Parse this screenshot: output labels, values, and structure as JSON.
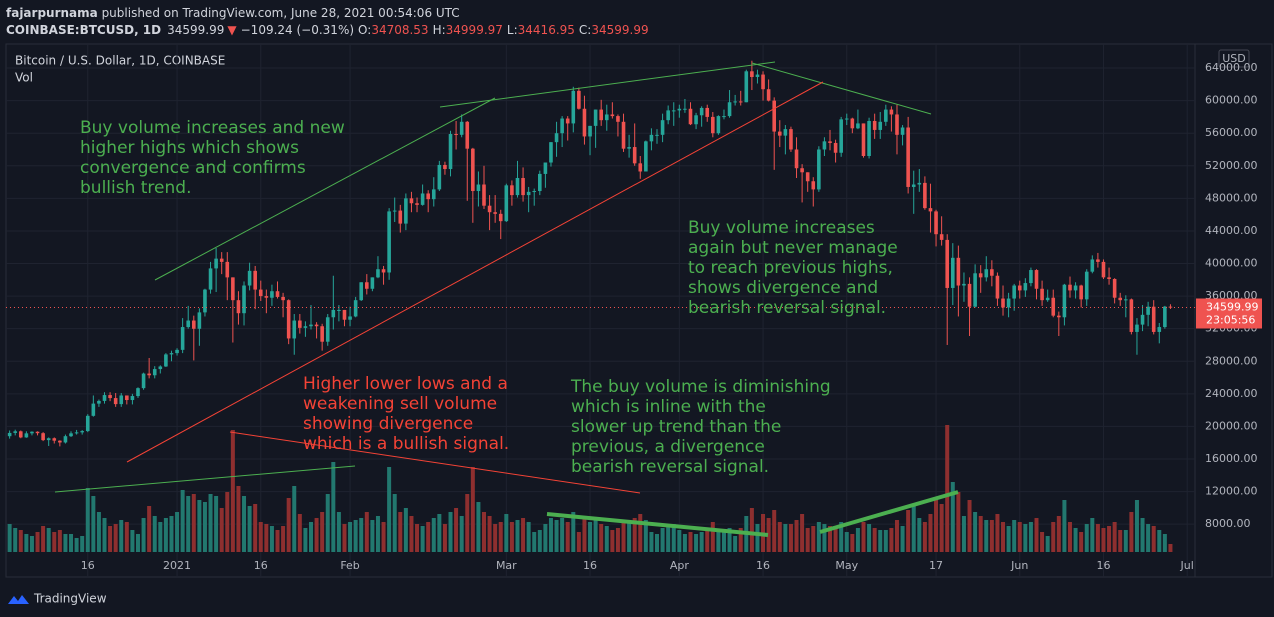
{
  "header": {
    "author": "fajarpurnama",
    "published": " published on TradingView.com, June 28, 2021 00:54:06 UTC"
  },
  "chart_data": {
    "type": "candlestick",
    "symbol": "COINBASE:BTCUSD, 1D",
    "arrow": "▼",
    "change": "−109.24 (−0.31%)",
    "ohlc_labels": [
      "O:",
      "H:",
      "L:",
      "C:"
    ],
    "title": "Bitcoin / U.S. Dollar, 1D, COINBASE",
    "volume_label": "Vol",
    "currency": "USD",
    "countdown": "23:05:56",
    "open": [
      18800,
      19200,
      19400,
      18650,
      19150,
      19350,
      19170,
      18320,
      18550,
      18250,
      18030,
      18800,
      19150,
      19270,
      19430,
      21300,
      22800,
      23130,
      23850,
      23480,
      22740,
      23800,
      23240,
      23730,
      24700,
      26490,
      26280,
      27040,
      27360,
      28840,
      29000,
      29400,
      32200,
      33000,
      31990,
      34000,
      36800,
      39400,
      40600,
      40200,
      38300,
      35500,
      33900,
      37300,
      39100,
      36800,
      36000,
      35800,
      36600,
      35900,
      35500,
      30800,
      33000,
      32100,
      32300,
      32500,
      32300,
      30400,
      33400,
      34300,
      34300,
      33100,
      33500,
      35500,
      37700,
      36900,
      38300,
      39300,
      38900,
      46400,
      46500,
      44900,
      48000,
      47400,
      47200,
      48600,
      47900,
      49100,
      52100,
      51600,
      55900,
      55800,
      57400,
      54100,
      48900,
      49700,
      47100,
      46300,
      46100,
      45200,
      49600,
      48400,
      50500,
      48400,
      48800,
      48900,
      51000,
      52400,
      54900,
      56000,
      57800,
      57200,
      61200,
      59000,
      55600,
      56900,
      58900,
      57600,
      58300,
      58100,
      57400,
      54100,
      54300,
      52300,
      51300,
      55000,
      55800,
      55800,
      57600,
      58800,
      58800,
      59000,
      59000,
      57100,
      58200,
      59100,
      58000,
      56000,
      58100,
      58100,
      59800,
      59900,
      59800,
      63600,
      62900,
      63200,
      61400,
      60000,
      56200,
      55700,
      56500,
      54000,
      51700,
      51200,
      50100,
      49100,
      54000,
      55000,
      54800,
      53600,
      57700,
      57800,
      56600,
      57200,
      53200,
      57500,
      56400,
      57400,
      58900,
      58300,
      55800,
      56700,
      49400,
      49700,
      49900,
      46800,
      46400,
      43600,
      42900,
      37000,
      40700,
      37300,
      37500,
      34700,
      38800,
      38300,
      39300,
      38500,
      35700,
      34600,
      35700,
      37300,
      36700,
      37600,
      39200,
      36900,
      35500,
      35800,
      33600,
      33400,
      37400,
      36700,
      37300,
      35600,
      39000,
      40500,
      40200,
      38300,
      38100,
      35800,
      35500,
      35600,
      31600,
      32500,
      33700,
      34700,
      31600,
      32200,
      34708.53
    ],
    "high": [
      19500,
      19600,
      19500,
      19400,
      19400,
      19400,
      19300,
      18650,
      18650,
      18300,
      19000,
      19400,
      19570,
      19550,
      21500,
      23800,
      23300,
      24200,
      24200,
      24100,
      24100,
      23800,
      24000,
      24800,
      26600,
      28400,
      27400,
      27500,
      29000,
      29300,
      29600,
      33300,
      34800,
      33600,
      34500,
      36900,
      40200,
      41900,
      41400,
      41400,
      38300,
      36600,
      37800,
      40100,
      39700,
      37900,
      36800,
      37400,
      37800,
      36400,
      35600,
      33800,
      33800,
      32900,
      34900,
      32800,
      32600,
      33800,
      38500,
      34900,
      34300,
      34700,
      35900,
      37700,
      38700,
      38300,
      40900,
      39700,
      46800,
      48100,
      47200,
      48600,
      48800,
      48100,
      49700,
      49000,
      50600,
      52600,
      52500,
      56300,
      57500,
      58300,
      57500,
      54200,
      51300,
      52000,
      48400,
      48400,
      46600,
      49800,
      50200,
      52600,
      51800,
      49400,
      49200,
      51400,
      52400,
      54900,
      57400,
      58100,
      58100,
      61700,
      61600,
      60600,
      56900,
      58900,
      60100,
      59500,
      59800,
      58300,
      58400,
      55800,
      57200,
      53200,
      55100,
      56600,
      56500,
      58400,
      59400,
      59800,
      59500,
      60200,
      59800,
      58500,
      59300,
      59500,
      58600,
      58200,
      58900,
      61300,
      60700,
      61200,
      63800,
      64900,
      63800,
      63600,
      62600,
      60400,
      57600,
      57000,
      56800,
      55500,
      52200,
      51200,
      50600,
      54400,
      55500,
      56400,
      55200,
      58000,
      58400,
      57900,
      58900,
      57200,
      57900,
      58400,
      58600,
      59500,
      59300,
      59500,
      57000,
      58000,
      51400,
      51600,
      50700,
      49800,
      46600,
      45800,
      43600,
      42500,
      42200,
      38900,
      38300,
      39900,
      39800,
      40900,
      40400,
      38900,
      37300,
      36400,
      37500,
      37900,
      38200,
      39500,
      39300,
      37900,
      36800,
      36800,
      34100,
      37500,
      38400,
      37700,
      37400,
      39300,
      41000,
      41300,
      40500,
      39500,
      38200,
      36400,
      36100,
      35700,
      33300,
      34900,
      35300,
      35500,
      32700,
      34800,
      34999.97
    ],
    "low": [
      18500,
      18900,
      18550,
      18600,
      18900,
      18900,
      18200,
      17600,
      17900,
      17550,
      17900,
      18700,
      19000,
      19000,
      19300,
      21200,
      22400,
      22800,
      23100,
      22400,
      22400,
      22700,
      22700,
      23500,
      24500,
      25900,
      25900,
      26500,
      27300,
      28000,
      28700,
      29000,
      32000,
      28100,
      29900,
      33500,
      36300,
      36500,
      38700,
      35500,
      30300,
      32500,
      32400,
      36700,
      34400,
      35400,
      33900,
      34800,
      35700,
      33400,
      30100,
      28800,
      31400,
      31000,
      31900,
      30800,
      29300,
      29900,
      31900,
      32900,
      32300,
      32300,
      33400,
      35400,
      36200,
      36600,
      38200,
      37400,
      38000,
      45100,
      43800,
      44100,
      46300,
      46300,
      47100,
      46300,
      47000,
      48900,
      50900,
      50700,
      54000,
      55500,
      47700,
      45000,
      47000,
      46700,
      44100,
      45000,
      43000,
      45100,
      47100,
      48100,
      47600,
      46300,
      47100,
      48400,
      49300,
      51900,
      53100,
      54300,
      55100,
      56100,
      58900,
      54600,
      53300,
      54200,
      56900,
      56300,
      57800,
      55600,
      53700,
      53000,
      52000,
      50400,
      51300,
      53900,
      54700,
      54900,
      57100,
      56900,
      57900,
      58500,
      57000,
      56500,
      56800,
      57400,
      55500,
      55800,
      57700,
      57900,
      59400,
      59400,
      59800,
      61300,
      62100,
      60000,
      59900,
      51500,
      54300,
      53400,
      53700,
      50500,
      47500,
      48800,
      47000,
      48800,
      53200,
      53900,
      52400,
      53100,
      57000,
      56000,
      56500,
      53000,
      52900,
      55300,
      55300,
      56900,
      56200,
      53400,
      54500,
      48600,
      46100,
      48800,
      46600,
      43800,
      42100,
      42200,
      30000,
      34900,
      33500,
      35300,
      31100,
      34600,
      36400,
      37800,
      37200,
      34800,
      33600,
      33400,
      34200,
      35700,
      35900,
      37200,
      35600,
      34800,
      35300,
      33400,
      31100,
      32400,
      35800,
      35700,
      34600,
      34800,
      38800,
      39500,
      38100,
      37400,
      35100,
      34800,
      33400,
      31300,
      28800,
      31700,
      32300,
      31300,
      30200,
      32000,
      34416.95
    ],
    "close": [
      19200,
      19400,
      18650,
      19150,
      19350,
      19170,
      18320,
      18550,
      18250,
      18030,
      18800,
      19150,
      19270,
      19430,
      21300,
      22800,
      23130,
      23850,
      23480,
      22740,
      23800,
      23240,
      23730,
      24700,
      26490,
      26280,
      27040,
      27360,
      28840,
      29000,
      29400,
      32200,
      33000,
      31990,
      34000,
      36800,
      39400,
      40600,
      40200,
      38300,
      35500,
      33900,
      37300,
      39100,
      36800,
      36000,
      35800,
      36600,
      35900,
      35500,
      30800,
      33000,
      32100,
      32300,
      32500,
      32300,
      30400,
      33400,
      34300,
      34300,
      33100,
      33500,
      35500,
      37700,
      36900,
      38300,
      39300,
      38900,
      46400,
      46500,
      44900,
      48000,
      47400,
      47200,
      48600,
      47900,
      49100,
      52100,
      51600,
      55900,
      55800,
      57400,
      54100,
      48900,
      49700,
      47100,
      46300,
      46100,
      45200,
      49600,
      48400,
      50500,
      48400,
      48800,
      48900,
      51000,
      52400,
      54900,
      56000,
      57800,
      57200,
      61200,
      59000,
      55600,
      56900,
      58900,
      57600,
      58300,
      58100,
      57400,
      54100,
      54300,
      52300,
      51300,
      55000,
      55800,
      55800,
      57600,
      58800,
      58800,
      59000,
      59000,
      57100,
      58200,
      59100,
      58000,
      56000,
      58100,
      58100,
      59800,
      59900,
      59800,
      63600,
      62900,
      63200,
      61400,
      60000,
      56200,
      55700,
      56500,
      54000,
      51700,
      51200,
      50100,
      49100,
      54000,
      55000,
      54800,
      53600,
      57700,
      57800,
      56600,
      57200,
      53200,
      57500,
      56400,
      57400,
      58900,
      58300,
      55800,
      56700,
      49400,
      49700,
      49900,
      46800,
      46400,
      43600,
      42900,
      37000,
      40700,
      37300,
      37500,
      34700,
      38800,
      38300,
      39300,
      38500,
      35700,
      34600,
      35700,
      37300,
      36700,
      37600,
      39200,
      36900,
      35500,
      35800,
      33600,
      33400,
      37400,
      36700,
      37300,
      35600,
      39000,
      40500,
      40200,
      38300,
      38100,
      35800,
      35500,
      35600,
      31600,
      32500,
      33700,
      34700,
      31600,
      32200,
      34709.23,
      34599.99
    ],
    "volume": [
      28,
      24,
      22,
      18,
      16,
      20,
      26,
      24,
      20,
      22,
      18,
      18,
      14,
      16,
      64,
      56,
      40,
      34,
      26,
      28,
      32,
      30,
      22,
      18,
      34,
      46,
      36,
      30,
      34,
      36,
      40,
      62,
      56,
      58,
      52,
      50,
      58,
      56,
      44,
      60,
      122,
      66,
      56,
      46,
      48,
      30,
      28,
      26,
      22,
      26,
      54,
      66,
      38,
      24,
      30,
      34,
      40,
      58,
      90,
      40,
      28,
      30,
      32,
      34,
      40,
      32,
      36,
      30,
      85,
      58,
      40,
      44,
      36,
      28,
      26,
      30,
      34,
      38,
      28,
      40,
      44,
      36,
      58,
      85,
      50,
      40,
      36,
      28,
      30,
      38,
      30,
      32,
      34,
      30,
      20,
      22,
      28,
      34,
      32,
      34,
      30,
      40,
      20,
      36,
      30,
      32,
      28,
      26,
      22,
      24,
      30,
      30,
      34,
      38,
      32,
      20,
      18,
      24,
      26,
      28,
      22,
      18,
      20,
      18,
      20,
      22,
      30,
      22,
      20,
      24,
      16,
      24,
      36,
      44,
      28,
      38,
      34,
      42,
      30,
      28,
      28,
      32,
      38,
      24,
      26,
      30,
      28,
      26,
      26,
      30,
      20,
      18,
      24,
      30,
      28,
      24,
      22,
      22,
      24,
      32,
      26,
      42,
      48,
      34,
      30,
      38,
      52,
      48,
      127,
      70,
      60,
      36,
      52,
      40,
      36,
      32,
      32,
      38,
      30,
      26,
      32,
      30,
      28,
      30,
      34,
      20,
      16,
      30,
      36,
      52,
      30,
      24,
      20,
      28,
      34,
      28,
      24,
      26,
      30,
      22,
      22,
      40,
      52,
      34,
      28,
      26,
      22,
      18,
      8
    ],
    "up_color": "#26a69a",
    "down_color": "#ef5350",
    "volume_up_color": "#22786f",
    "volume_down_color": "#8e2f2f",
    "ylim": [
      1390,
      66460
    ],
    "yticks": [
      {
        "value": 8000,
        "label": "8000.00"
      },
      {
        "value": 12000,
        "label": "12000.00"
      },
      {
        "value": 16000,
        "label": "16000.00"
      },
      {
        "value": 20000,
        "label": "20000.00"
      },
      {
        "value": 24000,
        "label": "24000.00"
      },
      {
        "value": 28000,
        "label": "28000.00"
      },
      {
        "value": 32000,
        "label": "32000.00"
      },
      {
        "value": 36000,
        "label": "36000.00"
      },
      {
        "value": 40000,
        "label": "40000.00"
      },
      {
        "value": 44000,
        "label": "44000.00"
      },
      {
        "value": 48000,
        "label": "48000.00"
      },
      {
        "value": 52000,
        "label": "52000.00"
      },
      {
        "value": 56000,
        "label": "56000.00"
      },
      {
        "value": 60000,
        "label": "60000.00"
      },
      {
        "value": 64000,
        "label": "64000.00"
      }
    ],
    "xlim": [
      -0.65,
      212.4
    ],
    "xticks": [
      {
        "value": 14,
        "label": "16"
      },
      {
        "value": 30,
        "label": "2021"
      },
      {
        "value": 45,
        "label": "16"
      },
      {
        "value": 61,
        "label": "Feb"
      },
      {
        "value": 89,
        "label": "Mar"
      },
      {
        "value": 104,
        "label": "16"
      },
      {
        "value": 120,
        "label": "Apr"
      },
      {
        "value": 135,
        "label": "16"
      },
      {
        "value": 150,
        "label": "May"
      },
      {
        "value": 166,
        "label": "17"
      },
      {
        "value": 181,
        "label": "Jun"
      },
      {
        "value": 196,
        "label": "16"
      },
      {
        "value": 211,
        "label": "Jul"
      }
    ],
    "grid": true,
    "annotations": [
      {
        "lines": [
          "Buy volume increases and new",
          "higher highs which shows",
          "convergence and confirms",
          "bullish trend."
        ],
        "color": "#4caf50"
      },
      {
        "lines": [
          "Buy volume increases",
          "again but never manage",
          "to reach previous highs,",
          "shows divergence and",
          "bearish reversal signal."
        ],
        "color": "#4caf50"
      },
      {
        "lines": [
          "Higher lower lows and a",
          "weakening sell volume",
          "showing divergence",
          "which is a bullish signal."
        ],
        "color": "#f44336"
      },
      {
        "lines": [
          "The buy volume is diminishing",
          "which is inline with the",
          "slower up trend than the",
          "previous, a divergence",
          "bearish reversal signal."
        ],
        "color": "#4caf50"
      }
    ]
  },
  "branding": "TradingView"
}
